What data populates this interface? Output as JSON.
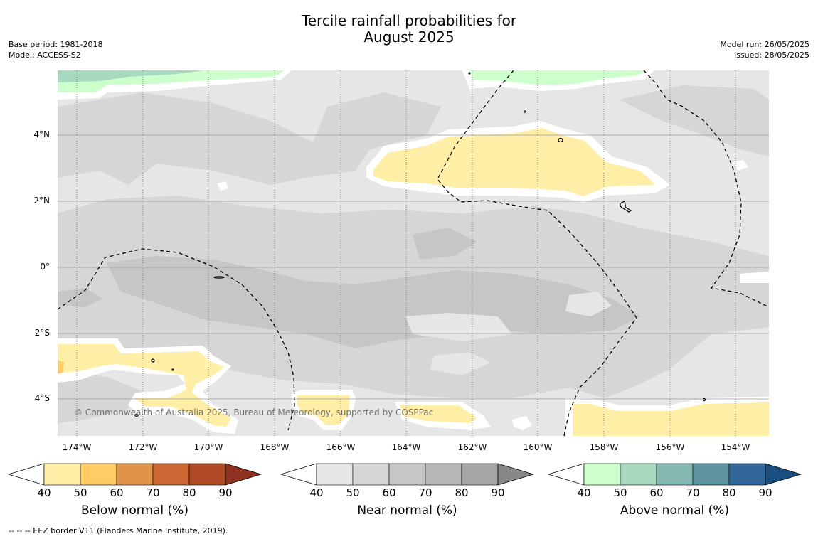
{
  "title_line1": "Tercile rainfall probabilities for",
  "title_line2": "August 2025",
  "meta_left": {
    "base_period": "Base period: 1981-2018",
    "model": "Model: ACCESS-S2"
  },
  "meta_right": {
    "model_run": "Model run: 26/05/2025",
    "issued": "Issued: 28/05/2025"
  },
  "lat_labels": [
    "4°N",
    "2°N",
    "0°",
    "2°S",
    "4°S"
  ],
  "lon_labels": [
    "174°W",
    "172°W",
    "170°W",
    "168°W",
    "166°W",
    "164°W",
    "162°W",
    "160°W",
    "158°W",
    "156°W",
    "154°W"
  ],
  "copyright": "© Commonwealth of Australia 2025, Bureau of Meteorology, supported by COSPPac",
  "colorbars": [
    {
      "title": "Below normal (%)",
      "ticks": [
        "40",
        "50",
        "60",
        "70",
        "80",
        "90"
      ],
      "colors": [
        "#ffeea6",
        "#ffcc66",
        "#e09448",
        "#cc6633",
        "#b04a26",
        "#8f3120"
      ]
    },
    {
      "title": "Near normal (%)",
      "ticks": [
        "40",
        "50",
        "60",
        "70",
        "80",
        "90"
      ],
      "colors": [
        "#e6e6e6",
        "#d6d6d6",
        "#c6c6c6",
        "#b6b6b6",
        "#a6a6a6",
        "#888888"
      ]
    },
    {
      "title": "Above normal (%)",
      "ticks": [
        "40",
        "50",
        "60",
        "70",
        "80",
        "90"
      ],
      "colors": [
        "#ccffcc",
        "#a6d9bf",
        "#85b8b0",
        "#5e94a0",
        "#336699",
        "#1a4d80"
      ]
    }
  ],
  "footer": "--  --  -- EEZ border V11 (Flanders Marine Institute, 2019)."
}
